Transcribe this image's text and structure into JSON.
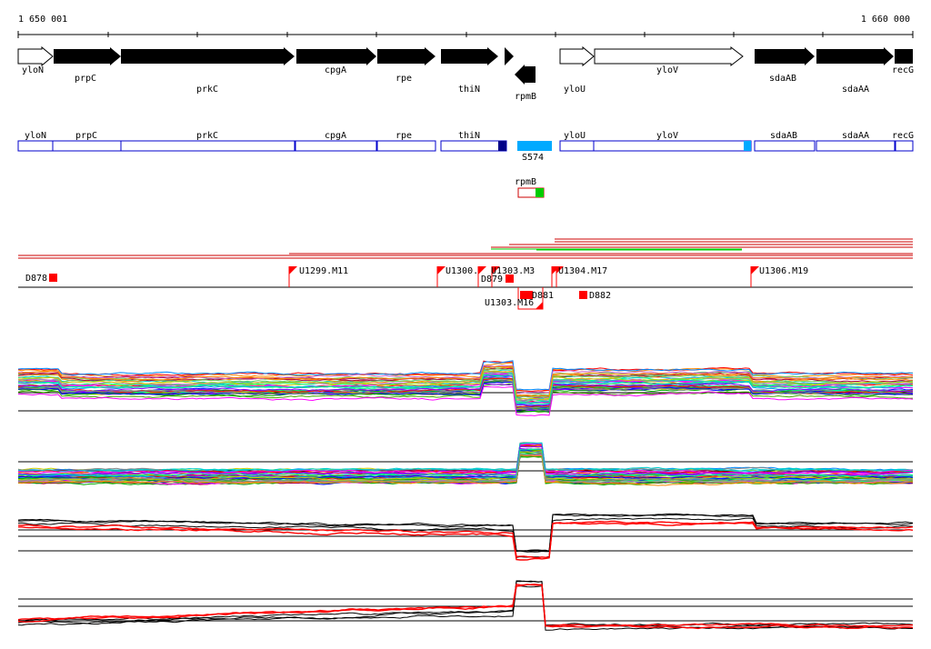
{
  "ruler": {
    "start_label": "1 650 001",
    "end_label": "1 660 000"
  },
  "genes": [
    {
      "name": "yloN",
      "strand": "+",
      "style": "open"
    },
    {
      "name": "prpC",
      "strand": "+",
      "style": "filled"
    },
    {
      "name": "prkC",
      "strand": "+",
      "style": "filled"
    },
    {
      "name": "cpgA",
      "strand": "+",
      "style": "filled"
    },
    {
      "name": "rpe",
      "strand": "+",
      "style": "filled"
    },
    {
      "name": "thiN",
      "strand": "+",
      "style": "filled"
    },
    {
      "name": "rpmB",
      "strand": "-",
      "style": "filled"
    },
    {
      "name": "yloU",
      "strand": "+",
      "style": "open"
    },
    {
      "name": "yloV",
      "strand": "+",
      "style": "open"
    },
    {
      "name": "sdaAB",
      "strand": "+",
      "style": "filled"
    },
    {
      "name": "sdaAA",
      "strand": "+",
      "style": "filled"
    },
    {
      "name": "recG",
      "strand": "+",
      "style": "filled"
    }
  ],
  "gene_boxes": [
    "yloN",
    "prpC",
    "prkC",
    "cpgA",
    "rpe",
    "thiN",
    "yloU",
    "yloV",
    "sdaAB",
    "sdaAA",
    "recG"
  ],
  "segment_label": "S574",
  "rpmB_label": "rpmB",
  "markers": [
    "D878",
    "U1299.M11",
    "U1300.",
    "D879",
    "U1303.M3",
    "U1304.M17",
    "U1306.M19",
    "D881",
    "D882",
    "U1303.M16"
  ],
  "colors": {
    "gene_fill": "#000000",
    "box_outline": "#0000cc",
    "segment": "#00aaff",
    "marker": "#ff0000",
    "green": "#00cc00"
  }
}
